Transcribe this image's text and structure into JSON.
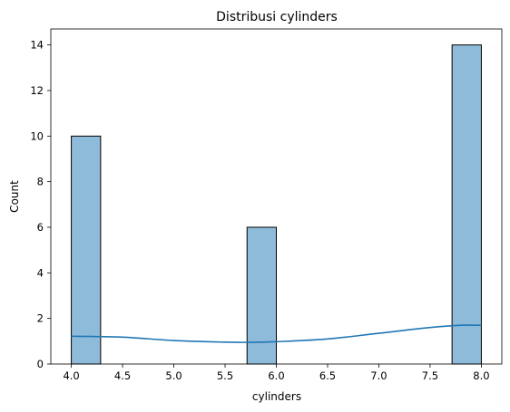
{
  "chart_data": {
    "type": "bar",
    "title": "Distribusi cylinders",
    "xlabel": "cylinders",
    "ylabel": "Count",
    "xlim": [
      3.8,
      8.2
    ],
    "ylim": [
      0,
      14.7
    ],
    "x_ticks": [
      "4.0",
      "4.5",
      "5.0",
      "5.5",
      "6.0",
      "6.5",
      "7.0",
      "7.5",
      "8.0"
    ],
    "y_ticks": [
      "0",
      "2",
      "4",
      "6",
      "8",
      "10",
      "12",
      "14"
    ],
    "grid": false,
    "legend": "none",
    "bins": [
      {
        "start": 4.0,
        "end": 4.2857,
        "count": 10
      },
      {
        "start": 5.7143,
        "end": 6.0,
        "count": 6
      },
      {
        "start": 7.7143,
        "end": 8.0,
        "count": 14
      }
    ],
    "kde": {
      "x": [
        4.0,
        4.5,
        5.0,
        5.5,
        5.75,
        6.0,
        6.5,
        7.0,
        7.5,
        7.8,
        8.0
      ],
      "y": [
        1.22,
        1.18,
        1.03,
        0.96,
        0.95,
        0.98,
        1.1,
        1.35,
        1.6,
        1.7,
        1.7
      ]
    },
    "colors": {
      "bar_fill": "#8fbbdb",
      "bar_edge": "#000000",
      "kde_line": "#1f77b4"
    }
  }
}
